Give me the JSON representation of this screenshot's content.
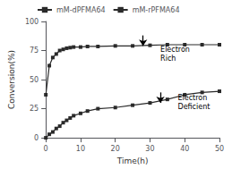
{
  "chart_data": {
    "type": "line",
    "xlabel": "Time(h)",
    "ylabel": "Conversion(%)",
    "xlim": [
      0,
      50
    ],
    "ylim": [
      0,
      100
    ],
    "xticks": [
      0,
      10,
      20,
      30,
      40,
      50
    ],
    "yticks": [
      0,
      25,
      50,
      75,
      100
    ],
    "grid": false,
    "legend": "upper left",
    "marker": "square",
    "x": [
      0,
      1,
      2,
      3,
      4,
      5,
      6,
      7,
      8,
      10,
      12,
      15,
      20,
      25,
      30,
      35,
      40,
      45,
      50
    ],
    "series": [
      {
        "name": "mM-dPFMA64",
        "color": "#2a2a2a",
        "values": [
          37,
          62,
          69,
          72,
          75,
          76,
          77,
          77.5,
          78,
          78,
          78.5,
          78.5,
          79,
          79,
          79.5,
          80,
          80,
          80,
          80
        ]
      },
      {
        "name": "mM-rPFMA64",
        "color": "#2a2a2a",
        "values": [
          0,
          3,
          5,
          8,
          10,
          13,
          15,
          17,
          19,
          21,
          23,
          25,
          26,
          28,
          30,
          33,
          37,
          39,
          40
        ]
      }
    ],
    "annotations": [
      {
        "text": "Electron\nRich",
        "x": 33,
        "y": 80,
        "arrow_from": [
          28,
          88
        ],
        "arrow_to": [
          28,
          79
        ]
      },
      {
        "text": "Electron\nDeficient",
        "x": 38,
        "y": 38,
        "arrow_from": [
          33,
          39
        ],
        "arrow_to": [
          33,
          30
        ]
      }
    ]
  }
}
